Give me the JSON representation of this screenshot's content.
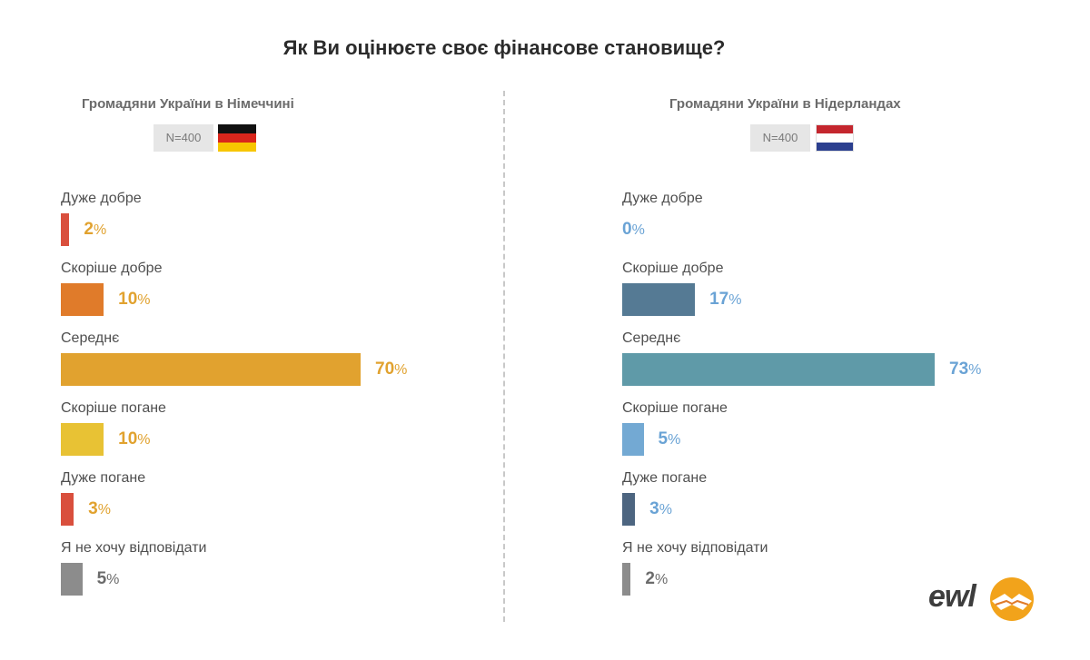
{
  "title": "Як Ви оцінюєте своє фінансове становище?",
  "panels": [
    {
      "label": "Громадяни України в Німеччині",
      "n": "N=400",
      "flag": "germany-flag",
      "flag_colors": [
        "#111111",
        "#d9261c",
        "#f7c600"
      ]
    },
    {
      "label": "Громадяни України в Нідерландах",
      "n": "N=400",
      "flag": "netherlands-flag",
      "flag_colors": [
        "#c4262e",
        "#ffffff",
        "#2b3f8f"
      ]
    }
  ],
  "logo": {
    "text": "ewl",
    "icon": "handshake-sun-icon"
  },
  "chart_data": [
    {
      "type": "bar",
      "orientation": "horizontal",
      "title": "Громадяни України в Німеччині",
      "categories": [
        "Дуже добре",
        "Скоріше добре",
        "Середнє",
        "Скоріше погане",
        "Дуже погане",
        "Я не хочу відповідати"
      ],
      "values": [
        2,
        10,
        70,
        10,
        3,
        5
      ],
      "unit": "%",
      "colors": [
        "#d94f3d",
        "#e07b2a",
        "#e1a22f",
        "#e8c234",
        "#d94f3d",
        "#8c8c8c"
      ],
      "label_colors": [
        "#e1a22f",
        "#e1a22f",
        "#e1a22f",
        "#e1a22f",
        "#e1a22f",
        "#6b6b6b"
      ],
      "xlim": [
        0,
        70
      ]
    },
    {
      "type": "bar",
      "orientation": "horizontal",
      "title": "Громадяни України в Нідерландах",
      "categories": [
        "Дуже добре",
        "Скоріше добре",
        "Середнє",
        "Скоріше погане",
        "Дуже погане",
        "Я не хочу відповідати"
      ],
      "values": [
        0,
        17,
        73,
        5,
        3,
        2
      ],
      "unit": "%",
      "colors": [
        "#5a7691",
        "#557a94",
        "#5f9aa8",
        "#73a9d3",
        "#4d6580",
        "#8c8c8c"
      ],
      "label_colors": [
        "#6aa3d5",
        "#6aa3d5",
        "#6aa3d5",
        "#6aa3d5",
        "#6aa3d5",
        "#6b6b6b"
      ],
      "xlim": [
        0,
        73
      ]
    }
  ]
}
